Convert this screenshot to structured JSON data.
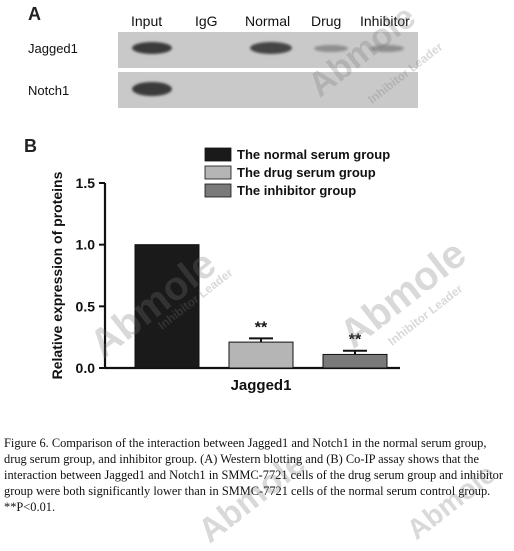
{
  "panel_a": {
    "letter": "A",
    "lanes": [
      "Input",
      "IgG",
      "Normal",
      "Drug",
      "Inhibitor"
    ],
    "rows": [
      "Jagged1",
      "Notch1"
    ]
  },
  "panel_b": {
    "letter": "B"
  },
  "chart_data": {
    "type": "bar",
    "categories": [
      "Jagged1"
    ],
    "series": [
      {
        "name": "The normal serum group",
        "values": [
          1.0
        ],
        "error": [
          0.0
        ],
        "color": "#1a1a1a",
        "annotation": ""
      },
      {
        "name": "The drug serum group",
        "values": [
          0.21
        ],
        "error": [
          0.03
        ],
        "color": "#b5b5b5",
        "annotation": "**"
      },
      {
        "name": "The inhibitor group",
        "values": [
          0.11
        ],
        "error": [
          0.03
        ],
        "color": "#7a7a7a",
        "annotation": "**"
      }
    ],
    "xlabel": "Jagged1",
    "ylabel": "Relative expression of proteins",
    "ylim": [
      0,
      1.5
    ],
    "yticks": [
      "0.0",
      "0.5",
      "1.0",
      "1.5"
    ],
    "legend_position": "top",
    "grid": false
  },
  "caption": "Figure 6. Comparison of the interaction between Jagged1 and Notch1 in the normal serum group, drug serum group, and inhibitor group. (A) Western blotting and (B) Co-IP assay shows that the interaction between Jagged1 and Notch1 in SMMC-7721 cells of the drug serum group and inhibitor group were both significantly lower than in SMMC-7721 cells of the normal serum control group. **P<0.01.",
  "watermark": {
    "brand": "Abmole",
    "tagline": "Inhibitor Leader"
  }
}
